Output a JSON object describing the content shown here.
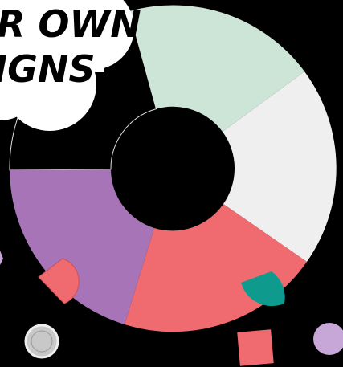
{
  "cloud_text": {
    "line1": "R OWN",
    "line2": "IGNS"
  }
}
